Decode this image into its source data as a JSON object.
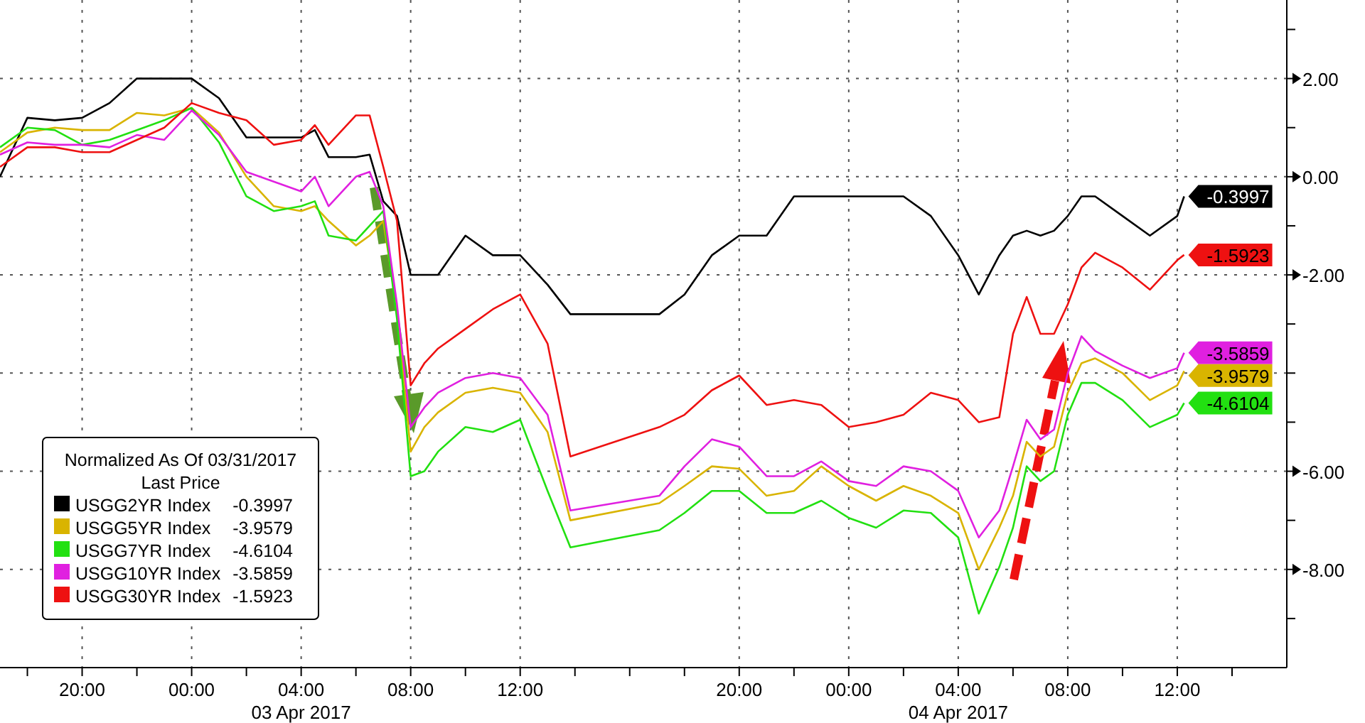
{
  "chart_data": {
    "type": "line",
    "legend_title": "Normalized As Of 03/31/2017\nLast Price",
    "legend": "left",
    "grid": true,
    "xlim": [
      "2017-04-02T17:00",
      "2017-04-04T16:00"
    ],
    "xticks": [
      {
        "value": "2017-04-02T18:00",
        "label": null
      },
      {
        "value": "2017-04-02T20:00",
        "label": "20:00"
      },
      {
        "value": "2017-04-02T22:00",
        "label": null
      },
      {
        "value": "2017-04-03T00:00",
        "label": "00:00"
      },
      {
        "value": "2017-04-03T02:00",
        "label": null
      },
      {
        "value": "2017-04-03T04:00",
        "label": "04:00\n03 Apr 2017"
      },
      {
        "value": "2017-04-03T06:00",
        "label": null
      },
      {
        "value": "2017-04-03T08:00",
        "label": "08:00"
      },
      {
        "value": "2017-04-03T10:00",
        "label": null
      },
      {
        "value": "2017-04-03T12:00",
        "label": "12:00"
      },
      {
        "value": "2017-04-03T14:00",
        "label": null
      },
      {
        "value": "2017-04-03T16:00",
        "label": null
      },
      {
        "value": "2017-04-03T18:00",
        "label": null
      },
      {
        "value": "2017-04-03T20:00",
        "label": "20:00"
      },
      {
        "value": "2017-04-03T22:00",
        "label": null
      },
      {
        "value": "2017-04-04T00:00",
        "label": "00:00"
      },
      {
        "value": "2017-04-04T02:00",
        "label": null
      },
      {
        "value": "2017-04-04T04:00",
        "label": "04:00\n04 Apr 2017"
      },
      {
        "value": "2017-04-04T06:00",
        "label": null
      },
      {
        "value": "2017-04-04T08:00",
        "label": "08:00"
      },
      {
        "value": "2017-04-04T10:00",
        "label": null
      },
      {
        "value": "2017-04-04T12:00",
        "label": "12:00"
      },
      {
        "value": "2017-04-04T14:00",
        "label": null
      }
    ],
    "ylim": [
      -10,
      3.6
    ],
    "yticks": [
      {
        "value": 3,
        "label": null
      },
      {
        "value": 2,
        "label": "2.00"
      },
      {
        "value": 1,
        "label": null
      },
      {
        "value": 0,
        "label": "0.00"
      },
      {
        "value": -1,
        "label": null
      },
      {
        "value": -2,
        "label": "-2.00"
      },
      {
        "value": -3,
        "label": null
      },
      {
        "value": -4,
        "label": null
      },
      {
        "value": -5,
        "label": null
      },
      {
        "value": -6,
        "label": "-6.00"
      },
      {
        "value": -7,
        "label": null
      },
      {
        "value": -8,
        "label": "-8.00"
      },
      {
        "value": -9,
        "label": null
      }
    ],
    "x": [
      "2017-04-02T17:00",
      "2017-04-02T18:00",
      "2017-04-02T19:00",
      "2017-04-02T20:00",
      "2017-04-02T21:00",
      "2017-04-02T22:00",
      "2017-04-02T23:00",
      "2017-04-03T00:00",
      "2017-04-03T01:00",
      "2017-04-03T02:00",
      "2017-04-03T03:00",
      "2017-04-03T04:00",
      "2017-04-03T04:30",
      "2017-04-03T05:00",
      "2017-04-03T06:00",
      "2017-04-03T06:30",
      "2017-04-03T07:00",
      "2017-04-03T07:30",
      "2017-04-03T08:00",
      "2017-04-03T08:30",
      "2017-04-03T09:00",
      "2017-04-03T10:00",
      "2017-04-03T11:00",
      "2017-04-03T12:00",
      "2017-04-03T13:00",
      "2017-04-03T13:50",
      "2017-04-03T17:05",
      "2017-04-03T18:00",
      "2017-04-03T19:00",
      "2017-04-03T20:00",
      "2017-04-03T21:00",
      "2017-04-03T22:00",
      "2017-04-03T23:00",
      "2017-04-04T00:00",
      "2017-04-04T01:00",
      "2017-04-04T02:00",
      "2017-04-04T03:00",
      "2017-04-04T04:00",
      "2017-04-04T04:45",
      "2017-04-04T05:30",
      "2017-04-04T06:00",
      "2017-04-04T06:30",
      "2017-04-04T07:00",
      "2017-04-04T07:30",
      "2017-04-04T08:00",
      "2017-04-04T08:30",
      "2017-04-04T09:00",
      "2017-04-04T10:00",
      "2017-04-04T11:00",
      "2017-04-04T12:00",
      "2017-04-04T12:15"
    ],
    "series": [
      {
        "name": "USGG2YR Index",
        "color": "#000000",
        "values": [
          0,
          1.2,
          1.15,
          1.2,
          1.5,
          2.0,
          2.0,
          2.0,
          1.6,
          0.8,
          0.8,
          0.8,
          0.95,
          0.4,
          0.4,
          0.45,
          -0.5,
          -0.8,
          -2.0,
          -2.0,
          -2.0,
          -1.2,
          -1.6,
          -1.6,
          -2.2,
          -2.8,
          -2.8,
          -2.4,
          -1.6,
          -1.2,
          -1.2,
          -0.4,
          -0.4,
          -0.4,
          -0.4,
          -0.4,
          -0.8,
          -1.6,
          -2.4,
          -1.6,
          -1.2,
          -1.1,
          -1.2,
          -1.1,
          -0.8,
          -0.4,
          -0.4,
          -0.8,
          -1.2,
          -0.8,
          -0.3997
        ],
        "value_labels": [
          null,
          null,
          null,
          null,
          null,
          null,
          null,
          null,
          null,
          null,
          null,
          null,
          null,
          null,
          null,
          null,
          null,
          null,
          null,
          null,
          null,
          null,
          null,
          null,
          null,
          null,
          null,
          null,
          null,
          null,
          null,
          null,
          null,
          null,
          null,
          null,
          null,
          null,
          null,
          null,
          null,
          null,
          null,
          null,
          null,
          null,
          null,
          null,
          null,
          null,
          "-0.3997"
        ]
      },
      {
        "name": "USGG5YR Index",
        "color": "#d9b400",
        "values": [
          0.5,
          0.9,
          1.0,
          0.95,
          0.95,
          1.3,
          1.25,
          1.4,
          0.9,
          0.0,
          -0.6,
          -0.7,
          -0.6,
          -0.9,
          -1.4,
          -1.2,
          -0.9,
          -2.7,
          -5.6,
          -5.1,
          -4.8,
          -4.4,
          -4.3,
          -4.4,
          -5.2,
          -7.0,
          -6.65,
          -6.3,
          -5.9,
          -5.95,
          -6.5,
          -6.4,
          -5.9,
          -6.3,
          -6.6,
          -6.3,
          -6.5,
          -6.85,
          -8.0,
          -7.15,
          -6.5,
          -5.4,
          -5.7,
          -5.5,
          -4.4,
          -3.8,
          -3.7,
          -4.0,
          -4.55,
          -4.25,
          -3.9579
        ],
        "value_labels": [
          null,
          null,
          null,
          null,
          null,
          null,
          null,
          null,
          null,
          null,
          null,
          null,
          null,
          null,
          null,
          null,
          null,
          null,
          null,
          null,
          null,
          null,
          null,
          null,
          null,
          null,
          null,
          null,
          null,
          null,
          null,
          null,
          null,
          null,
          null,
          null,
          null,
          null,
          null,
          null,
          null,
          null,
          null,
          null,
          null,
          null,
          null,
          null,
          null,
          null,
          "-3.9579"
        ]
      },
      {
        "name": "USGG7YR Index",
        "color": "#22e011",
        "values": [
          0.6,
          1.0,
          0.95,
          0.65,
          0.75,
          0.95,
          1.15,
          1.4,
          0.7,
          -0.4,
          -0.7,
          -0.6,
          -0.5,
          -1.2,
          -1.3,
          -1.0,
          -0.7,
          -2.9,
          -6.1,
          -6.0,
          -5.6,
          -5.1,
          -5.2,
          -4.95,
          -6.4,
          -7.55,
          -7.2,
          -6.85,
          -6.4,
          -6.4,
          -6.85,
          -6.85,
          -6.6,
          -6.95,
          -7.15,
          -6.8,
          -6.85,
          -7.35,
          -8.9,
          -7.95,
          -7.15,
          -5.9,
          -6.2,
          -6.0,
          -4.85,
          -4.2,
          -4.2,
          -4.55,
          -5.1,
          -4.85,
          -4.6104
        ],
        "value_labels": [
          null,
          null,
          null,
          null,
          null,
          null,
          null,
          null,
          null,
          null,
          null,
          null,
          null,
          null,
          null,
          null,
          null,
          null,
          null,
          null,
          null,
          null,
          null,
          null,
          null,
          null,
          null,
          null,
          null,
          null,
          null,
          null,
          null,
          null,
          null,
          null,
          null,
          null,
          null,
          null,
          null,
          null,
          null,
          null,
          null,
          null,
          null,
          null,
          null,
          null,
          "-4.6104"
        ]
      },
      {
        "name": "USGG10YR Index",
        "color": "#e020e0",
        "values": [
          0.45,
          0.7,
          0.65,
          0.65,
          0.6,
          0.85,
          0.75,
          1.35,
          0.85,
          0.1,
          -0.1,
          -0.3,
          0,
          -0.6,
          0,
          0.1,
          -0.6,
          -2.6,
          -5.1,
          -4.7,
          -4.4,
          -4.1,
          -4.0,
          -4.1,
          -4.85,
          -6.8,
          -6.5,
          -5.9,
          -5.35,
          -5.5,
          -6.1,
          -6.1,
          -5.8,
          -6.2,
          -6.3,
          -5.9,
          -6.0,
          -6.4,
          -7.35,
          -6.8,
          -5.9,
          -4.95,
          -5.35,
          -5.15,
          -4.0,
          -3.25,
          -3.55,
          -3.85,
          -4.1,
          -3.9,
          -3.5859
        ],
        "value_labels": [
          null,
          null,
          null,
          null,
          null,
          null,
          null,
          null,
          null,
          null,
          null,
          null,
          null,
          null,
          null,
          null,
          null,
          null,
          null,
          null,
          null,
          null,
          null,
          null,
          null,
          null,
          null,
          null,
          null,
          null,
          null,
          null,
          null,
          null,
          null,
          null,
          null,
          null,
          null,
          null,
          null,
          null,
          null,
          null,
          null,
          null,
          null,
          null,
          null,
          null,
          "-3.5859"
        ]
      },
      {
        "name": "USGG30YR Index",
        "color": "#ee1111",
        "values": [
          0.2,
          0.6,
          0.6,
          0.5,
          0.5,
          0.75,
          1.0,
          1.5,
          1.3,
          1.15,
          0.65,
          0.75,
          1.05,
          0.65,
          1.25,
          1.25,
          0.2,
          -0.9,
          -4.25,
          -3.8,
          -3.5,
          -3.1,
          -2.7,
          -2.4,
          -3.4,
          -5.7,
          -5.1,
          -4.85,
          -4.35,
          -4.05,
          -4.65,
          -4.55,
          -4.65,
          -5.1,
          -5.0,
          -4.85,
          -4.4,
          -4.55,
          -5.0,
          -4.9,
          -3.2,
          -2.45,
          -3.2,
          -3.2,
          -2.6,
          -1.85,
          -1.55,
          -1.85,
          -2.3,
          -1.7,
          -1.5923
        ],
        "value_labels": [
          null,
          null,
          null,
          null,
          null,
          null,
          null,
          null,
          null,
          null,
          null,
          null,
          null,
          null,
          null,
          null,
          null,
          null,
          null,
          null,
          null,
          null,
          null,
          null,
          null,
          null,
          null,
          null,
          null,
          null,
          null,
          null,
          null,
          null,
          null,
          null,
          null,
          null,
          null,
          null,
          null,
          null,
          null,
          null,
          null,
          null,
          null,
          null,
          null,
          null,
          "-1.5923"
        ]
      }
    ]
  }
}
